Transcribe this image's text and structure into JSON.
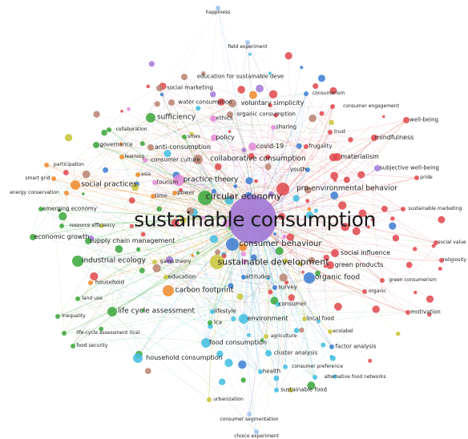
{
  "colors": {
    "red": "#e0474c",
    "purple": "#a178d6",
    "green": "#3aa63a",
    "yellow": "#c8c437",
    "orange": "#f08a2a",
    "blue": "#3b7bd1",
    "cyan": "#40bde0",
    "brown": "#b88372",
    "pink": "#e48ad6",
    "lightblue": "#9ec3ee"
  },
  "terms": [
    {
      "text": "sustainable consumption",
      "cluster": "purple"
    },
    {
      "text": "circular economy",
      "cluster": "green"
    },
    {
      "text": "sustainable development",
      "cluster": "yellow"
    },
    {
      "text": "consumer behaviour",
      "cluster": "blue"
    },
    {
      "text": "pro-environmental behavior",
      "cluster": "red"
    },
    {
      "text": "practice theory",
      "cluster": "pink"
    },
    {
      "text": "collaborative consumption",
      "cluster": "brown"
    },
    {
      "text": "voluntary simplicity",
      "cluster": "brown"
    },
    {
      "text": "sufficiency",
      "cluster": "green"
    },
    {
      "text": "materialism",
      "cluster": "red"
    },
    {
      "text": "industrial ecology",
      "cluster": "green"
    },
    {
      "text": "carbon footprint",
      "cluster": "orange"
    },
    {
      "text": "organic food",
      "cluster": "blue"
    },
    {
      "text": "social practices",
      "cluster": "orange"
    },
    {
      "text": "life cycle assessment",
      "cluster": "green"
    },
    {
      "text": "household consumption",
      "cluster": "cyan"
    },
    {
      "text": "green products",
      "cluster": "red"
    },
    {
      "text": "social influence",
      "cluster": "red"
    },
    {
      "text": "subjective well-being",
      "cluster": "purple"
    },
    {
      "text": "mindfulness",
      "cluster": "red"
    },
    {
      "text": "environment",
      "cluster": "cyan"
    },
    {
      "text": "food consumption",
      "cluster": "cyan"
    },
    {
      "text": "covid-19",
      "cluster": "pink"
    },
    {
      "text": "happiness",
      "cluster": "lightblue"
    },
    {
      "text": "field experiment",
      "cluster": "lightblue"
    },
    {
      "text": "education for sustainable deve",
      "cluster": "brown"
    },
    {
      "text": "social marketing",
      "cluster": "brown"
    },
    {
      "text": "consumerism",
      "cluster": "blue"
    },
    {
      "text": "water consumption",
      "cluster": "brown"
    },
    {
      "text": "consumer engagement",
      "cluster": "red"
    },
    {
      "text": "ethics",
      "cluster": "pink"
    },
    {
      "text": "organic consumption",
      "cluster": "brown"
    },
    {
      "text": "well-being",
      "cluster": "red"
    },
    {
      "text": "collaboration",
      "cluster": "green"
    },
    {
      "text": "sharing",
      "cluster": "pink"
    },
    {
      "text": "trust",
      "cluster": "red"
    },
    {
      "text": "smes",
      "cluster": "green"
    },
    {
      "text": "policy",
      "cluster": "pink"
    },
    {
      "text": "governance",
      "cluster": "green"
    },
    {
      "text": "frugality",
      "cluster": "red"
    },
    {
      "text": "anti-consumption",
      "cluster": "brown"
    },
    {
      "text": "learning",
      "cluster": "orange"
    },
    {
      "text": "participation",
      "cluster": "orange"
    },
    {
      "text": "consumer culture",
      "cluster": "pink"
    },
    {
      "text": "smart grid",
      "cluster": "orange"
    },
    {
      "text": "youth",
      "cluster": "blue"
    },
    {
      "text": "pride",
      "cluster": "red"
    },
    {
      "text": "asia",
      "cluster": "orange"
    },
    {
      "text": "tourism",
      "cluster": "pink"
    },
    {
      "text": "energy conservation",
      "cluster": "orange"
    },
    {
      "text": "time",
      "cluster": "orange"
    },
    {
      "text": "power",
      "cluster": "orange"
    },
    {
      "text": "emerging economy",
      "cluster": "green"
    },
    {
      "text": "sustainable marketing",
      "cluster": "red"
    },
    {
      "text": "resource efficiency",
      "cluster": "green"
    },
    {
      "text": "economic growth",
      "cluster": "green"
    },
    {
      "text": "supply chain management",
      "cluster": "green"
    },
    {
      "text": "social value",
      "cluster": "red"
    },
    {
      "text": "religiosity",
      "cluster": "red"
    },
    {
      "text": "game theory",
      "cluster": "yellow"
    },
    {
      "text": "green consumerism",
      "cluster": "red"
    },
    {
      "text": "household",
      "cluster": "orange"
    },
    {
      "text": "education",
      "cluster": "yellow"
    },
    {
      "text": "attitudes",
      "cluster": "blue"
    },
    {
      "text": "survey",
      "cluster": "blue"
    },
    {
      "text": "organic",
      "cluster": "red"
    },
    {
      "text": "land use",
      "cluster": "green"
    },
    {
      "text": "consumer",
      "cluster": "cyan"
    },
    {
      "text": "motivation",
      "cluster": "red"
    },
    {
      "text": "inequality",
      "cluster": "green"
    },
    {
      "text": "lifestyle",
      "cluster": "cyan"
    },
    {
      "text": "lca",
      "cluster": "green"
    },
    {
      "text": "local food",
      "cluster": "yellow"
    },
    {
      "text": "ecolabel",
      "cluster": "yellow"
    },
    {
      "text": "life-cycle assessment (lca)",
      "cluster": "green"
    },
    {
      "text": "agriculture",
      "cluster": "yellow"
    },
    {
      "text": "food security",
      "cluster": "green"
    },
    {
      "text": "factor analysis",
      "cluster": "blue"
    },
    {
      "text": "cluster analysis",
      "cluster": "cyan"
    },
    {
      "text": "consumer preference",
      "cluster": "cyan"
    },
    {
      "text": "health",
      "cluster": "cyan"
    },
    {
      "text": "alternative food networks",
      "cluster": "cyan"
    },
    {
      "text": "sustainable food",
      "cluster": "cyan"
    },
    {
      "text": "urbanization",
      "cluster": "yellow"
    },
    {
      "text": "consumer segmentation",
      "cluster": "lightblue"
    },
    {
      "text": "choice experiment",
      "cluster": "lightblue"
    }
  ]
}
